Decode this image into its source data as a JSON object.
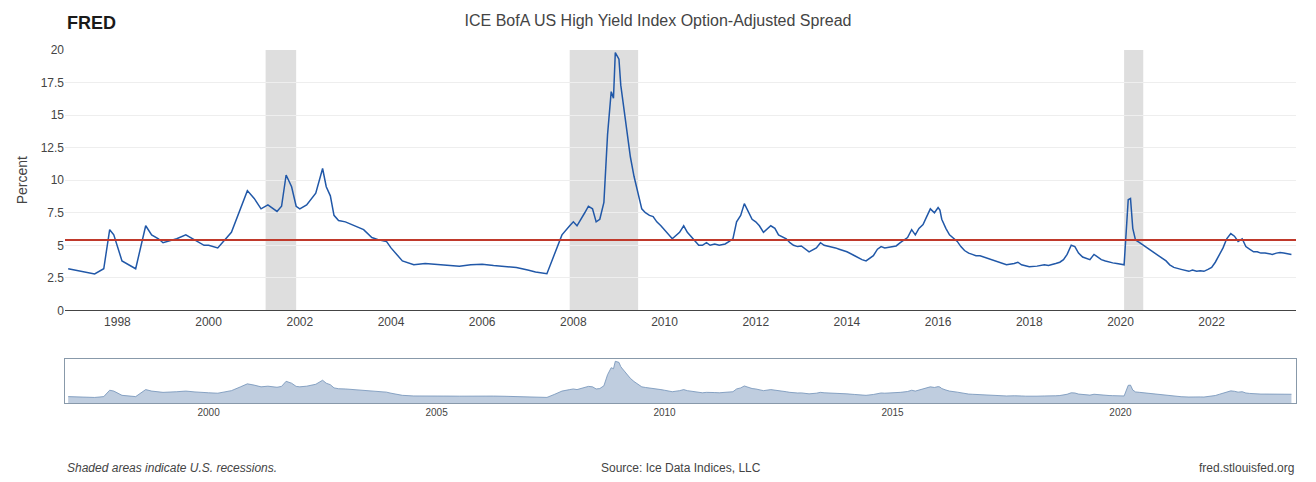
{
  "chart_data": [
    {
      "type": "line",
      "title": "ICE BofA US High Yield Index Option-Adjusted Spread",
      "y_label": "Percent",
      "annotations": [
        "FRED",
        "Shaded areas indicate U.S. recessions.",
        "Source: Ice Data Indices, LLC",
        "fred.stlouisfed.org"
      ],
      "x": [
        1996.92,
        1997.3,
        1997.5,
        1997.7,
        1997.83,
        1997.92,
        1998.1,
        1998.4,
        1998.62,
        1998.75,
        1998.9,
        1999.0,
        1999.3,
        1999.5,
        1999.7,
        1999.9,
        2000.0,
        2000.2,
        2000.5,
        2000.7,
        2000.85,
        2001.0,
        2001.15,
        2001.3,
        2001.5,
        2001.6,
        2001.7,
        2001.82,
        2001.92,
        2002.0,
        2002.15,
        2002.35,
        2002.5,
        2002.58,
        2002.67,
        2002.75,
        2002.85,
        2003.0,
        2003.2,
        2003.4,
        2003.58,
        2003.75,
        2003.9,
        2004.0,
        2004.25,
        2004.5,
        2004.75,
        2005.0,
        2005.25,
        2005.5,
        2005.75,
        2006.0,
        2006.25,
        2006.5,
        2006.75,
        2007.0,
        2007.17,
        2007.42,
        2007.58,
        2007.75,
        2007.92,
        2008.0,
        2008.08,
        2008.17,
        2008.25,
        2008.33,
        2008.42,
        2008.5,
        2008.58,
        2008.67,
        2008.75,
        2008.83,
        2008.88,
        2008.92,
        2009.0,
        2009.04,
        2009.08,
        2009.17,
        2009.25,
        2009.33,
        2009.42,
        2009.5,
        2009.58,
        2009.67,
        2009.75,
        2009.83,
        2009.92,
        2010.0,
        2010.17,
        2010.33,
        2010.42,
        2010.5,
        2010.58,
        2010.67,
        2010.75,
        2010.83,
        2010.92,
        2011.0,
        2011.1,
        2011.2,
        2011.33,
        2011.42,
        2011.5,
        2011.58,
        2011.67,
        2011.75,
        2011.83,
        2011.92,
        2012.0,
        2012.08,
        2012.17,
        2012.33,
        2012.42,
        2012.5,
        2012.67,
        2012.75,
        2012.83,
        2012.92,
        2013.0,
        2013.17,
        2013.33,
        2013.42,
        2013.5,
        2013.67,
        2013.75,
        2013.83,
        2013.92,
        2014.0,
        2014.17,
        2014.33,
        2014.42,
        2014.58,
        2014.67,
        2014.75,
        2014.83,
        2014.92,
        2015.0,
        2015.08,
        2015.17,
        2015.33,
        2015.42,
        2015.5,
        2015.58,
        2015.67,
        2015.75,
        2015.83,
        2015.92,
        2016.0,
        2016.04,
        2016.08,
        2016.17,
        2016.25,
        2016.42,
        2016.5,
        2016.58,
        2016.67,
        2016.75,
        2016.83,
        2016.92,
        2017.0,
        2017.17,
        2017.33,
        2017.5,
        2017.67,
        2017.75,
        2017.83,
        2017.92,
        2018.0,
        2018.17,
        2018.33,
        2018.42,
        2018.5,
        2018.58,
        2018.67,
        2018.75,
        2018.83,
        2018.92,
        2019.0,
        2019.08,
        2019.17,
        2019.33,
        2019.42,
        2019.5,
        2019.58,
        2019.67,
        2019.75,
        2019.83,
        2019.92,
        2020.0,
        2020.08,
        2020.17,
        2020.22,
        2020.27,
        2020.33,
        2020.42,
        2020.5,
        2020.58,
        2020.67,
        2020.75,
        2020.83,
        2020.92,
        2021.0,
        2021.08,
        2021.17,
        2021.33,
        2021.5,
        2021.58,
        2021.67,
        2021.75,
        2021.83,
        2021.92,
        2022.0,
        2022.08,
        2022.17,
        2022.25,
        2022.33,
        2022.42,
        2022.5,
        2022.58,
        2022.67,
        2022.75,
        2022.83,
        2022.92,
        2023.0,
        2023.08,
        2023.17,
        2023.25,
        2023.33,
        2023.42,
        2023.5,
        2023.58,
        2023.67,
        2023.75
      ],
      "values": [
        3.2,
        2.9,
        2.8,
        3.2,
        6.2,
        5.8,
        3.8,
        3.2,
        6.5,
        5.8,
        5.5,
        5.2,
        5.5,
        5.8,
        5.4,
        5.0,
        5.0,
        4.8,
        6.0,
        7.8,
        9.2,
        8.6,
        7.8,
        8.1,
        7.6,
        8.0,
        10.4,
        9.5,
        8.0,
        7.8,
        8.1,
        9.0,
        10.9,
        9.5,
        8.8,
        7.3,
        6.9,
        6.8,
        6.5,
        6.2,
        5.6,
        5.4,
        5.3,
        4.8,
        3.8,
        3.5,
        3.6,
        3.55,
        3.45,
        3.4,
        3.5,
        3.55,
        3.45,
        3.35,
        3.3,
        3.1,
        2.95,
        2.82,
        4.2,
        5.8,
        6.5,
        6.8,
        6.5,
        7.0,
        7.5,
        8.0,
        7.8,
        6.8,
        7.0,
        8.3,
        13.5,
        16.8,
        16.3,
        19.8,
        19.3,
        17.3,
        16.2,
        13.8,
        11.8,
        10.3,
        9.0,
        7.8,
        7.5,
        7.3,
        7.2,
        6.8,
        6.5,
        6.2,
        5.5,
        6.0,
        6.5,
        6.0,
        5.7,
        5.3,
        5.0,
        5.0,
        5.2,
        5.0,
        5.1,
        5.0,
        5.1,
        5.3,
        5.5,
        6.8,
        7.3,
        8.2,
        7.6,
        7.0,
        6.8,
        6.5,
        6.0,
        6.5,
        6.3,
        5.8,
        5.5,
        5.2,
        5.0,
        4.9,
        4.95,
        4.5,
        4.8,
        5.2,
        5.0,
        4.9,
        4.8,
        4.7,
        4.6,
        4.5,
        4.2,
        3.9,
        3.8,
        4.2,
        4.7,
        4.9,
        4.8,
        4.85,
        4.9,
        4.95,
        5.2,
        5.6,
        6.2,
        5.8,
        6.3,
        6.6,
        7.2,
        7.8,
        7.5,
        7.9,
        7.7,
        7.0,
        6.3,
        5.8,
        5.3,
        4.9,
        4.6,
        4.4,
        4.3,
        4.2,
        4.2,
        4.1,
        3.9,
        3.7,
        3.5,
        3.6,
        3.7,
        3.5,
        3.4,
        3.35,
        3.4,
        3.5,
        3.45,
        3.5,
        3.6,
        3.7,
        3.9,
        4.3,
        5.0,
        4.9,
        4.4,
        4.1,
        3.9,
        4.3,
        4.1,
        3.9,
        3.8,
        3.7,
        3.65,
        3.6,
        3.55,
        3.5,
        8.5,
        8.6,
        6.3,
        5.4,
        5.2,
        5.0,
        4.8,
        4.6,
        4.4,
        4.2,
        4.0,
        3.8,
        3.5,
        3.3,
        3.15,
        3.0,
        3.1,
        3.0,
        3.05,
        3.0,
        3.15,
        3.3,
        3.7,
        4.3,
        4.8,
        5.5,
        5.9,
        5.7,
        5.3,
        5.5,
        4.9,
        4.7,
        4.5,
        4.5,
        4.4,
        4.4,
        4.35,
        4.3,
        4.4,
        4.45,
        4.4,
        4.35,
        4.3
      ],
      "color": "#2158a8",
      "hlines": [
        {
          "value": 5.4,
          "color": "#c0392b"
        }
      ],
      "recessions": {
        "ranges": [
          [
            2001.25,
            2001.92
          ],
          [
            2007.92,
            2009.42
          ],
          [
            2020.08,
            2020.5
          ]
        ],
        "color": "#d0d0d0"
      },
      "xlim": [
        1996.85,
        2023.85
      ],
      "xticks": [
        1998,
        2000,
        2002,
        2004,
        2006,
        2008,
        2010,
        2012,
        2014,
        2016,
        2018,
        2020,
        2022
      ],
      "ylim": [
        0.0,
        20.0
      ],
      "yticks": [
        0,
        2.5,
        5,
        7.5,
        10,
        12.5,
        15,
        17.5,
        20
      ],
      "grid": "y"
    },
    {
      "type": "area",
      "x": [
        1996.92,
        1997.3,
        1997.5,
        1997.7,
        1997.83,
        1997.92,
        1998.1,
        1998.4,
        1998.62,
        1998.75,
        1998.9,
        1999.0,
        1999.3,
        1999.5,
        1999.7,
        1999.9,
        2000.0,
        2000.2,
        2000.5,
        2000.7,
        2000.85,
        2001.0,
        2001.15,
        2001.3,
        2001.5,
        2001.6,
        2001.7,
        2001.82,
        2001.92,
        2002.0,
        2002.15,
        2002.35,
        2002.5,
        2002.58,
        2002.67,
        2002.75,
        2002.85,
        2003.0,
        2003.2,
        2003.4,
        2003.58,
        2003.75,
        2003.9,
        2004.0,
        2004.25,
        2004.5,
        2004.75,
        2005.0,
        2005.25,
        2005.5,
        2005.75,
        2006.0,
        2006.25,
        2006.5,
        2006.75,
        2007.0,
        2007.17,
        2007.42,
        2007.58,
        2007.75,
        2007.92,
        2008.0,
        2008.08,
        2008.17,
        2008.25,
        2008.33,
        2008.42,
        2008.5,
        2008.58,
        2008.67,
        2008.75,
        2008.83,
        2008.88,
        2008.92,
        2009.0,
        2009.04,
        2009.08,
        2009.17,
        2009.25,
        2009.33,
        2009.42,
        2009.5,
        2009.58,
        2009.67,
        2009.75,
        2009.83,
        2009.92,
        2010.0,
        2010.17,
        2010.33,
        2010.42,
        2010.5,
        2010.58,
        2010.67,
        2010.75,
        2010.83,
        2010.92,
        2011.0,
        2011.1,
        2011.2,
        2011.33,
        2011.42,
        2011.5,
        2011.58,
        2011.67,
        2011.75,
        2011.83,
        2011.92,
        2012.0,
        2012.08,
        2012.17,
        2012.33,
        2012.42,
        2012.5,
        2012.67,
        2012.75,
        2012.83,
        2012.92,
        2013.0,
        2013.17,
        2013.33,
        2013.42,
        2013.5,
        2013.67,
        2013.75,
        2013.83,
        2013.92,
        2014.0,
        2014.17,
        2014.33,
        2014.42,
        2014.58,
        2014.67,
        2014.75,
        2014.83,
        2014.92,
        2015.0,
        2015.08,
        2015.17,
        2015.33,
        2015.42,
        2015.5,
        2015.58,
        2015.67,
        2015.75,
        2015.83,
        2015.92,
        2016.0,
        2016.04,
        2016.08,
        2016.17,
        2016.25,
        2016.42,
        2016.5,
        2016.58,
        2016.67,
        2016.75,
        2016.83,
        2016.92,
        2017.0,
        2017.17,
        2017.33,
        2017.5,
        2017.67,
        2017.75,
        2017.83,
        2017.92,
        2018.0,
        2018.17,
        2018.33,
        2018.42,
        2018.5,
        2018.58,
        2018.67,
        2018.75,
        2018.83,
        2018.92,
        2019.0,
        2019.08,
        2019.17,
        2019.33,
        2019.42,
        2019.5,
        2019.58,
        2019.67,
        2019.75,
        2019.83,
        2019.92,
        2020.0,
        2020.08,
        2020.17,
        2020.22,
        2020.27,
        2020.33,
        2020.42,
        2020.5,
        2020.58,
        2020.67,
        2020.75,
        2020.83,
        2020.92,
        2021.0,
        2021.08,
        2021.17,
        2021.33,
        2021.5,
        2021.58,
        2021.67,
        2021.75,
        2021.83,
        2021.92,
        2022.0,
        2022.08,
        2022.17,
        2022.25,
        2022.33,
        2022.42,
        2022.5,
        2022.58,
        2022.67,
        2022.75,
        2022.83,
        2022.92,
        2023.0,
        2023.08,
        2023.17,
        2023.25,
        2023.33,
        2023.42,
        2023.5,
        2023.58,
        2023.67,
        2023.75
      ],
      "values": [
        3.2,
        2.9,
        2.8,
        3.2,
        6.2,
        5.8,
        3.8,
        3.2,
        6.5,
        5.8,
        5.5,
        5.2,
        5.5,
        5.8,
        5.4,
        5.0,
        5.0,
        4.8,
        6.0,
        7.8,
        9.2,
        8.6,
        7.8,
        8.1,
        7.6,
        8.0,
        10.4,
        9.5,
        8.0,
        7.8,
        8.1,
        9.0,
        10.9,
        9.5,
        8.8,
        7.3,
        6.9,
        6.8,
        6.5,
        6.2,
        5.6,
        5.4,
        5.3,
        4.8,
        3.8,
        3.5,
        3.6,
        3.55,
        3.45,
        3.4,
        3.5,
        3.55,
        3.45,
        3.35,
        3.3,
        3.1,
        2.95,
        2.82,
        4.2,
        5.8,
        6.5,
        6.8,
        6.5,
        7.0,
        7.5,
        8.0,
        7.8,
        6.8,
        7.0,
        8.3,
        13.5,
        16.8,
        16.3,
        19.8,
        19.3,
        17.3,
        16.2,
        13.8,
        11.8,
        10.3,
        9.0,
        7.8,
        7.5,
        7.3,
        7.2,
        6.8,
        6.5,
        6.2,
        5.5,
        6.0,
        6.5,
        6.0,
        5.7,
        5.3,
        5.0,
        5.0,
        5.2,
        5.0,
        5.1,
        5.0,
        5.1,
        5.3,
        5.5,
        6.8,
        7.3,
        8.2,
        7.6,
        7.0,
        6.8,
        6.5,
        6.0,
        6.5,
        6.3,
        5.8,
        5.5,
        5.2,
        5.0,
        4.9,
        4.95,
        4.5,
        4.8,
        5.2,
        5.0,
        4.9,
        4.8,
        4.7,
        4.6,
        4.5,
        4.2,
        3.9,
        3.8,
        4.2,
        4.7,
        4.9,
        4.8,
        4.85,
        4.9,
        4.95,
        5.2,
        5.6,
        6.2,
        5.8,
        6.3,
        6.6,
        7.2,
        7.8,
        7.5,
        7.9,
        7.7,
        7.0,
        6.3,
        5.8,
        5.3,
        4.9,
        4.6,
        4.4,
        4.3,
        4.2,
        4.2,
        4.1,
        3.9,
        3.7,
        3.5,
        3.6,
        3.7,
        3.5,
        3.4,
        3.35,
        3.4,
        3.5,
        3.45,
        3.5,
        3.6,
        3.7,
        3.9,
        4.3,
        5.0,
        4.9,
        4.4,
        4.1,
        3.9,
        4.3,
        4.1,
        3.9,
        3.8,
        3.7,
        3.65,
        3.6,
        3.55,
        3.5,
        8.5,
        8.6,
        6.3,
        5.4,
        5.2,
        5.0,
        4.8,
        4.6,
        4.4,
        4.2,
        4.0,
        3.8,
        3.5,
        3.3,
        3.15,
        3.0,
        3.1,
        3.0,
        3.05,
        3.0,
        3.15,
        3.3,
        3.7,
        4.3,
        4.8,
        5.5,
        5.9,
        5.7,
        5.3,
        5.5,
        4.9,
        4.7,
        4.5,
        4.5,
        4.4,
        4.4,
        4.35,
        4.3,
        4.4,
        4.45,
        4.4,
        4.35,
        4.3
      ],
      "color": "#7090b8",
      "xlim": [
        1996.85,
        2023.85
      ],
      "xticks": [
        2000,
        2005,
        2010,
        2015,
        2020
      ],
      "ylim": [
        0,
        21
      ],
      "tick_labels": "x"
    }
  ]
}
